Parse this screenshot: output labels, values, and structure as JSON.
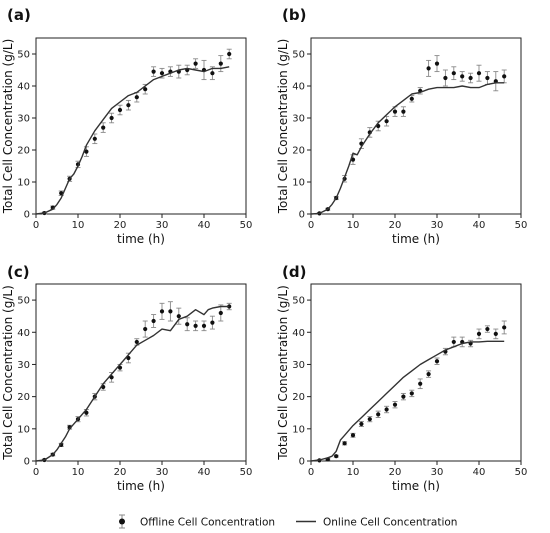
{
  "figure": {
    "legend": {
      "placement": "bottom-center",
      "items": [
        {
          "label": "Offline Cell Concentration",
          "marker": "point-with-errorbar"
        },
        {
          "label": "Online Cell Concentration",
          "marker": "line"
        }
      ]
    },
    "colors": {
      "online_line": "#333333",
      "offline_marker": "#111111",
      "errorbar": "#888888"
    }
  },
  "chart_data": [
    {
      "panel": "(a)",
      "type": "scatter",
      "xlabel": "time (h)",
      "ylabel": "Total Cell Concentration (g/L)",
      "xlim": [
        0,
        50
      ],
      "ylim": [
        0,
        55
      ],
      "xticks": [
        0,
        10,
        20,
        30,
        40,
        50
      ],
      "yticks": [
        0,
        10,
        20,
        30,
        40,
        50
      ],
      "grid": false,
      "series": [
        {
          "name": "Offline Cell Concentration",
          "kind": "points",
          "x": [
            2,
            4,
            6,
            8,
            10,
            12,
            14,
            16,
            18,
            20,
            22,
            24,
            26,
            28,
            30,
            32,
            34,
            36,
            38,
            40,
            42,
            44,
            46
          ],
          "y": [
            0.3,
            2,
            6.5,
            11,
            15.5,
            19.5,
            23.5,
            27,
            30,
            32.5,
            34,
            36.5,
            39,
            44.5,
            44,
            44.5,
            44.5,
            45,
            47,
            45,
            44,
            47,
            50
          ],
          "err": [
            0.3,
            0.5,
            0.7,
            0.8,
            1.0,
            1.5,
            1.5,
            1.5,
            1.5,
            1.5,
            1.5,
            1.5,
            1.5,
            1.5,
            1.5,
            1.5,
            2.0,
            1.5,
            1.5,
            3.0,
            2.0,
            2.5,
            1.5
          ]
        },
        {
          "name": "Online Cell Concentration",
          "kind": "line",
          "x": [
            0,
            2,
            4,
            5,
            6,
            7,
            8,
            9,
            10,
            11,
            12,
            14,
            16,
            18,
            20,
            22,
            24,
            26,
            28,
            30,
            32,
            34,
            36,
            38,
            40,
            42,
            44,
            46
          ],
          "y": [
            0,
            0.3,
            1.5,
            3,
            5,
            8,
            11,
            12.5,
            15,
            18,
            21.5,
            26,
            29.5,
            33,
            35,
            37,
            38,
            40,
            42,
            43,
            44,
            45,
            45.5,
            45,
            44.5,
            45.5,
            45.5,
            46
          ]
        }
      ]
    },
    {
      "panel": "(b)",
      "type": "scatter",
      "xlabel": "time (h)",
      "ylabel": "Total Cell Concentration (g/L)",
      "xlim": [
        0,
        50
      ],
      "ylim": [
        0,
        55
      ],
      "xticks": [
        0,
        10,
        20,
        30,
        40,
        50
      ],
      "yticks": [
        0,
        10,
        20,
        30,
        40,
        50
      ],
      "grid": false,
      "series": [
        {
          "name": "Offline Cell Concentration",
          "kind": "points",
          "x": [
            2,
            4,
            6,
            8,
            10,
            12,
            14,
            16,
            18,
            20,
            22,
            24,
            26,
            28,
            30,
            32,
            34,
            36,
            38,
            40,
            42,
            44,
            46
          ],
          "y": [
            0.2,
            1.5,
            5,
            11,
            17,
            22,
            25.5,
            27.5,
            29,
            32,
            32,
            36,
            38.5,
            45.5,
            47,
            42.5,
            44,
            43,
            42.5,
            44,
            42.5,
            41.5,
            43
          ],
          "err": [
            0.2,
            0.3,
            0.5,
            1.0,
            1.5,
            1.5,
            1.5,
            1.5,
            1.5,
            1.5,
            1.5,
            1.0,
            1.0,
            2.5,
            2.5,
            2.5,
            2.0,
            1.5,
            1.5,
            2.5,
            2.0,
            3.0,
            2.0
          ]
        },
        {
          "name": "Online Cell Concentration",
          "kind": "line",
          "x": [
            0,
            2,
            4,
            5,
            6,
            7,
            8,
            9,
            10,
            11,
            12,
            14,
            16,
            18,
            20,
            22,
            24,
            26,
            28,
            30,
            32,
            34,
            36,
            38,
            40,
            42,
            44,
            46
          ],
          "y": [
            0,
            0.2,
            1.5,
            3,
            5,
            8,
            11.5,
            15,
            19,
            18.5,
            21,
            25,
            28.5,
            31,
            33.5,
            35.5,
            37.5,
            38,
            39,
            39.5,
            39.5,
            39.5,
            40,
            39.5,
            39.5,
            40.5,
            41,
            41
          ]
        }
      ]
    },
    {
      "panel": "(c)",
      "type": "scatter",
      "xlabel": "time (h)",
      "ylabel": "Total Cell Concentration (g/L)",
      "xlim": [
        0,
        50
      ],
      "ylim": [
        0,
        55
      ],
      "xticks": [
        0,
        10,
        20,
        30,
        40,
        50
      ],
      "yticks": [
        0,
        10,
        20,
        30,
        40,
        50
      ],
      "grid": false,
      "series": [
        {
          "name": "Offline Cell Concentration",
          "kind": "points",
          "x": [
            2,
            4,
            6,
            8,
            10,
            12,
            14,
            16,
            18,
            20,
            22,
            24,
            26,
            28,
            30,
            32,
            34,
            36,
            38,
            40,
            42,
            44,
            46
          ],
          "y": [
            0.3,
            2,
            5,
            10.5,
            13,
            15,
            20,
            23,
            26,
            29,
            32,
            37,
            41,
            43.5,
            46.5,
            46.5,
            45,
            42.5,
            42,
            42,
            43,
            46,
            48
          ],
          "err": [
            0.3,
            0.4,
            0.5,
            0.6,
            0.8,
            1.0,
            1.0,
            1.0,
            1.5,
            1.0,
            1.5,
            1.0,
            2.5,
            2.0,
            2.5,
            3.0,
            2.5,
            2.0,
            1.5,
            1.5,
            2.0,
            2.5,
            1.0
          ]
        },
        {
          "name": "Online Cell Concentration",
          "kind": "line",
          "x": [
            0,
            2,
            4,
            5,
            6,
            7,
            8,
            10,
            12,
            14,
            16,
            18,
            20,
            22,
            24,
            26,
            28,
            30,
            32,
            34,
            36,
            38,
            40,
            41,
            42,
            44,
            46
          ],
          "y": [
            0,
            0.3,
            2,
            3.5,
            5.5,
            7.5,
            10,
            13,
            16,
            20,
            24,
            27,
            30,
            33,
            36,
            37.5,
            39,
            41,
            40.5,
            44,
            45,
            47,
            45.5,
            47,
            47.5,
            48,
            48
          ]
        }
      ]
    },
    {
      "panel": "(d)",
      "type": "scatter",
      "xlabel": "time (h)",
      "ylabel": "Total Cell Concentration (g/L)",
      "xlim": [
        0,
        50
      ],
      "ylim": [
        0,
        55
      ],
      "xticks": [
        0,
        10,
        20,
        30,
        40,
        50
      ],
      "yticks": [
        0,
        10,
        20,
        30,
        40,
        50
      ],
      "grid": false,
      "series": [
        {
          "name": "Offline Cell Concentration",
          "kind": "points",
          "x": [
            2,
            4,
            6,
            8,
            10,
            12,
            14,
            16,
            18,
            20,
            22,
            24,
            26,
            28,
            30,
            32,
            34,
            36,
            38,
            40,
            42,
            44,
            46
          ],
          "y": [
            0.2,
            0.5,
            1.5,
            5.5,
            8,
            11.5,
            13,
            14.5,
            16,
            17.5,
            20,
            21,
            24,
            27,
            31,
            34,
            37,
            37,
            36.5,
            39.5,
            41,
            39.5,
            41.5
          ],
          "err": [
            0.2,
            0.2,
            0.3,
            0.5,
            0.6,
            0.8,
            0.8,
            1.0,
            1.0,
            1.0,
            1.0,
            1.0,
            1.5,
            1.0,
            1.0,
            1.0,
            1.5,
            1.5,
            1.0,
            1.5,
            1.0,
            1.5,
            2.0
          ]
        },
        {
          "name": "Online Cell Concentration",
          "kind": "line",
          "x": [
            0,
            2,
            4,
            5,
            6,
            7,
            8,
            10,
            12,
            14,
            16,
            18,
            20,
            22,
            24,
            26,
            28,
            30,
            32,
            34,
            36,
            38,
            40,
            42,
            44,
            46
          ],
          "y": [
            0,
            0.3,
            1,
            1.5,
            3,
            6.5,
            8,
            11,
            13.5,
            16,
            18.5,
            21,
            23.5,
            26,
            28,
            30,
            31.5,
            33,
            34.5,
            35.5,
            36.5,
            37,
            37,
            37.2,
            37.2,
            37.2
          ]
        }
      ]
    }
  ]
}
